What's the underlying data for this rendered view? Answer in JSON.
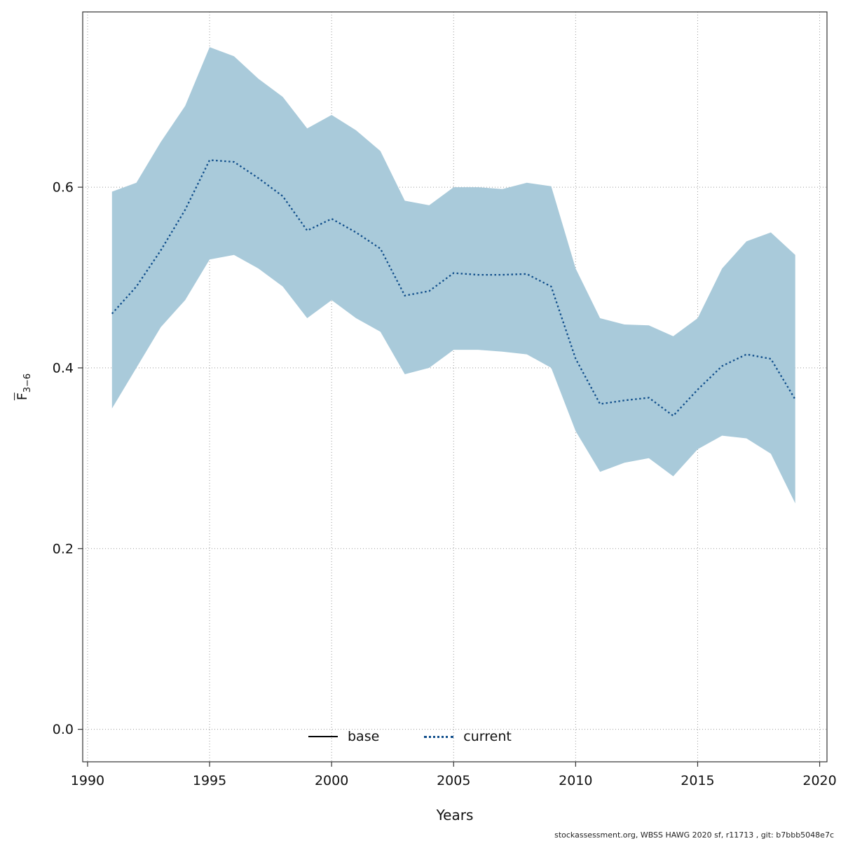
{
  "chart_data": {
    "type": "line",
    "title": "",
    "xlabel": "Years",
    "ylabel": {
      "main": "F",
      "sub": "3−6"
    },
    "xlim": [
      1989.8,
      2020.3
    ],
    "ylim": [
      -0.036,
      0.794
    ],
    "grid": true,
    "legend_position": "bottom-center-inside",
    "xticks": [
      1990,
      1995,
      2000,
      2005,
      2010,
      2015,
      2020
    ],
    "xtick_labels": [
      "1990",
      "1995",
      "2000",
      "2005",
      "2010",
      "2015",
      "2020"
    ],
    "yticks": [
      0.0,
      0.2,
      0.4,
      0.6
    ],
    "ytick_labels": [
      "0.0",
      "0.2",
      "0.4",
      "0.6"
    ],
    "x": [
      1991,
      1992,
      1993,
      1994,
      1995,
      1996,
      1997,
      1998,
      1999,
      2000,
      2001,
      2002,
      2003,
      2004,
      2005,
      2006,
      2007,
      2008,
      2009,
      2010,
      2011,
      2012,
      2013,
      2014,
      2015,
      2016,
      2017,
      2018,
      2019
    ],
    "series": [
      {
        "name": "current",
        "style": "dotted",
        "color": "#104E8B",
        "values": [
          0.46,
          0.49,
          0.53,
          0.575,
          0.63,
          0.628,
          0.61,
          0.59,
          0.552,
          0.565,
          0.55,
          0.532,
          0.48,
          0.485,
          0.505,
          0.503,
          0.503,
          0.504,
          0.49,
          0.41,
          0.36,
          0.364,
          0.367,
          0.347,
          0.376,
          0.402,
          0.415,
          0.41,
          0.365
        ]
      }
    ],
    "band": {
      "name": "confidence-interval",
      "color": "#A9CADA",
      "upper": [
        0.595,
        0.605,
        0.65,
        0.69,
        0.755,
        0.745,
        0.72,
        0.7,
        0.665,
        0.68,
        0.663,
        0.64,
        0.585,
        0.58,
        0.6,
        0.6,
        0.598,
        0.605,
        0.601,
        0.51,
        0.455,
        0.448,
        0.447,
        0.435,
        0.455,
        0.51,
        0.54,
        0.55,
        0.525
      ],
      "lower": [
        0.355,
        0.4,
        0.445,
        0.475,
        0.52,
        0.525,
        0.51,
        0.49,
        0.455,
        0.475,
        0.455,
        0.44,
        0.393,
        0.4,
        0.42,
        0.42,
        0.418,
        0.415,
        0.4,
        0.33,
        0.285,
        0.295,
        0.3,
        0.28,
        0.31,
        0.325,
        0.322,
        0.305,
        0.25
      ]
    },
    "legend": [
      {
        "label": "base",
        "style": "solid",
        "color": "#000000"
      },
      {
        "label": "current",
        "style": "dotted",
        "color": "#104E8B"
      }
    ],
    "footer": "stockassessment.org, WBSS HAWG 2020 sf, r11713 , git: b7bbb5048e7c"
  }
}
